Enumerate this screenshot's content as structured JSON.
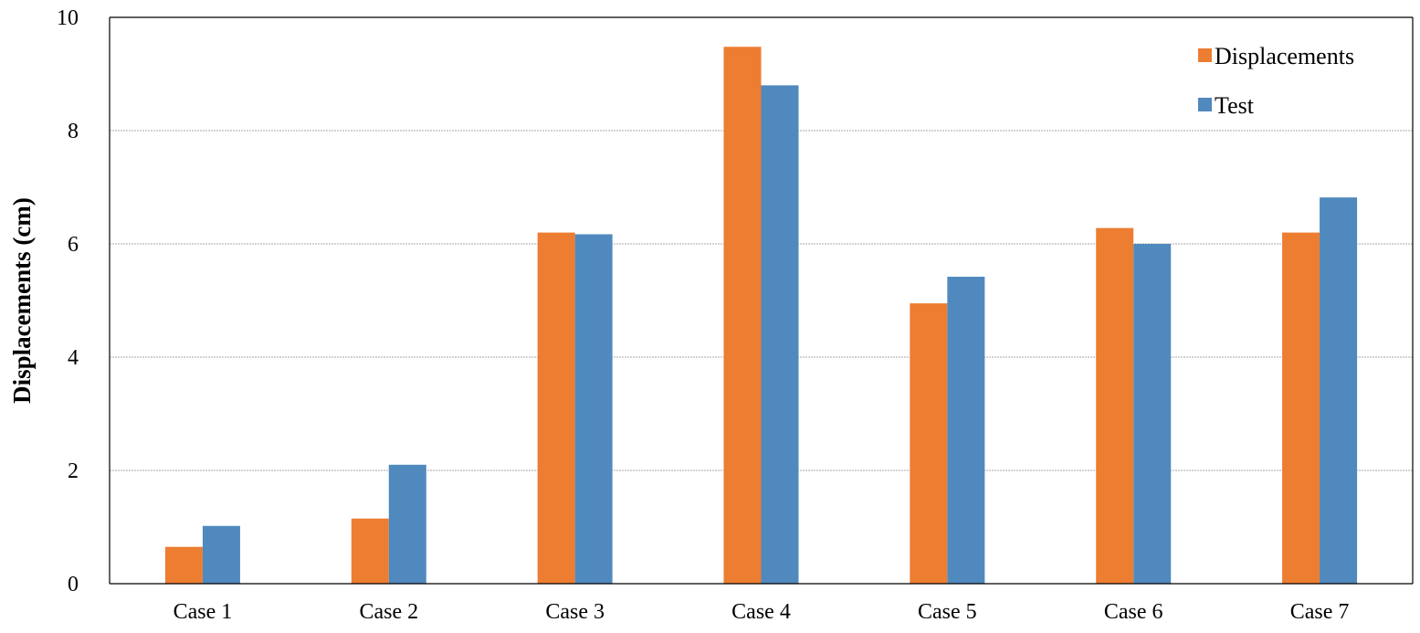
{
  "chart_data": {
    "type": "bar",
    "title": "",
    "xlabel": "",
    "ylabel": "Displacements (cm)",
    "categories": [
      "Case 1",
      "Case 2",
      "Case 3",
      "Case 4",
      "Case 5",
      "Case 6",
      "Case 7"
    ],
    "series": [
      {
        "name": "Displacements",
        "color": "#ED7D31",
        "values": [
          0.65,
          1.15,
          6.2,
          9.48,
          4.95,
          6.28,
          6.2
        ]
      },
      {
        "name": "Test",
        "color": "#5089BE",
        "values": [
          1.02,
          2.1,
          6.17,
          8.8,
          5.42,
          6.0,
          6.82
        ]
      }
    ],
    "ylim": [
      0,
      10
    ],
    "yticks": [
      "0",
      "2",
      "4",
      "6",
      "8",
      "10"
    ],
    "grid": true,
    "legend_position": "top-right"
  }
}
